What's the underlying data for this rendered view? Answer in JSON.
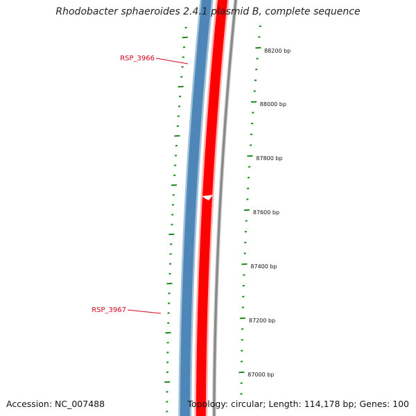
{
  "title": "Rhodobacter sphaeroides 2.4.1 plasmid B, complete sequence",
  "footer": {
    "accession": "Accession: NC_007488",
    "summary": "Topology: circular; Length: 114,178 bp; Genes: 100"
  },
  "colors": {
    "forward_strand": "#4f86b8",
    "forward_strand_light": "#9fc1dc",
    "reverse_strand": "#ff0000",
    "backbone": "#8a8a8a",
    "ticks": "#1a8a1a",
    "gene_label": "#d0021b"
  },
  "genes": [
    {
      "name": "RSP_3966"
    },
    {
      "name": "RSP_3967"
    }
  ],
  "ruler": {
    "labels": [
      "88200 bp",
      "88000 bp",
      "87800 bp",
      "87600 bp",
      "87400 bp",
      "87200 bp",
      "87000 bp"
    ]
  }
}
